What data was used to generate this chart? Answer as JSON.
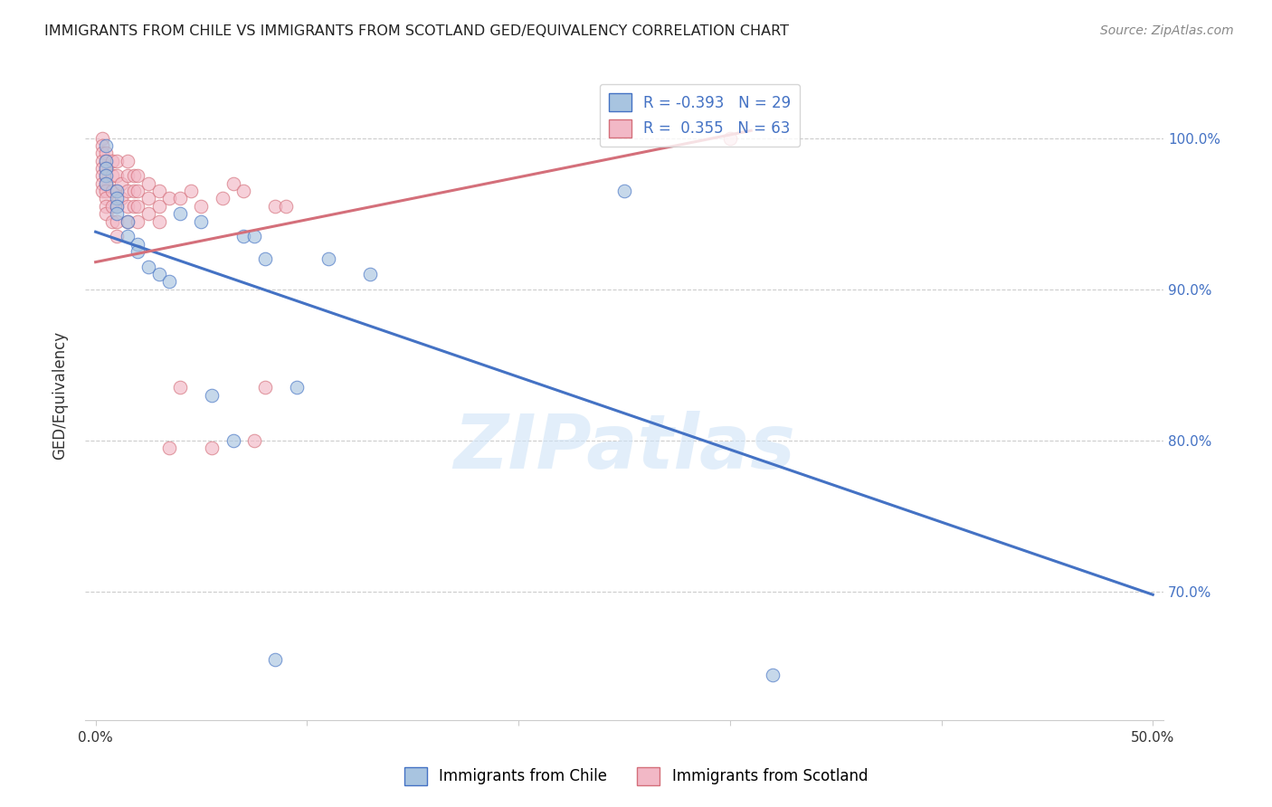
{
  "title": "IMMIGRANTS FROM CHILE VS IMMIGRANTS FROM SCOTLAND GED/EQUIVALENCY CORRELATION CHART",
  "source": "Source: ZipAtlas.com",
  "ylabel_label": "GED/Equivalency",
  "xmin": -0.005,
  "xmax": 0.505,
  "ymin": 0.615,
  "ymax": 1.045,
  "x_ticks": [
    0.0,
    0.1,
    0.2,
    0.3,
    0.4,
    0.5
  ],
  "x_tick_labels": [
    "0.0%",
    "",
    "",
    "",
    "",
    "50.0%"
  ],
  "y_ticks": [
    0.7,
    0.8,
    0.9,
    1.0
  ],
  "y_tick_labels": [
    "70.0%",
    "80.0%",
    "90.0%",
    "100.0%"
  ],
  "chile_color": "#a8c4e0",
  "scotland_color": "#f2b8c6",
  "chile_line_color": "#4472c4",
  "scotland_line_color": "#d46f7a",
  "legend_r_chile": "R = -0.393",
  "legend_n_chile": "N = 29",
  "legend_r_scotland": "R =  0.355",
  "legend_n_scotland": "N = 63",
  "watermark": "ZIPatlas",
  "chile_scatter_x": [
    0.005,
    0.005,
    0.005,
    0.005,
    0.005,
    0.01,
    0.01,
    0.01,
    0.01,
    0.015,
    0.015,
    0.02,
    0.02,
    0.025,
    0.03,
    0.035,
    0.04,
    0.05,
    0.055,
    0.065,
    0.07,
    0.08,
    0.085,
    0.095,
    0.11,
    0.13,
    0.25,
    0.075,
    0.32
  ],
  "chile_scatter_y": [
    0.995,
    0.985,
    0.98,
    0.975,
    0.97,
    0.965,
    0.96,
    0.955,
    0.95,
    0.945,
    0.935,
    0.93,
    0.925,
    0.915,
    0.91,
    0.905,
    0.95,
    0.945,
    0.83,
    0.8,
    0.935,
    0.92,
    0.655,
    0.835,
    0.92,
    0.91,
    0.965,
    0.935,
    0.645
  ],
  "scotland_scatter_x": [
    0.003,
    0.003,
    0.003,
    0.003,
    0.003,
    0.003,
    0.003,
    0.003,
    0.005,
    0.005,
    0.005,
    0.005,
    0.005,
    0.005,
    0.005,
    0.005,
    0.005,
    0.008,
    0.008,
    0.008,
    0.008,
    0.008,
    0.01,
    0.01,
    0.01,
    0.01,
    0.01,
    0.01,
    0.012,
    0.012,
    0.015,
    0.015,
    0.015,
    0.015,
    0.015,
    0.018,
    0.018,
    0.018,
    0.02,
    0.02,
    0.02,
    0.02,
    0.025,
    0.025,
    0.025,
    0.03,
    0.03,
    0.03,
    0.035,
    0.035,
    0.04,
    0.04,
    0.045,
    0.05,
    0.055,
    0.06,
    0.065,
    0.07,
    0.075,
    0.08,
    0.085,
    0.09,
    0.3
  ],
  "scotland_scatter_y": [
    1.0,
    0.995,
    0.99,
    0.985,
    0.98,
    0.975,
    0.97,
    0.965,
    0.99,
    0.985,
    0.98,
    0.975,
    0.97,
    0.965,
    0.96,
    0.955,
    0.95,
    0.985,
    0.975,
    0.965,
    0.955,
    0.945,
    0.985,
    0.975,
    0.965,
    0.955,
    0.945,
    0.935,
    0.97,
    0.96,
    0.985,
    0.975,
    0.965,
    0.955,
    0.945,
    0.975,
    0.965,
    0.955,
    0.975,
    0.965,
    0.955,
    0.945,
    0.97,
    0.96,
    0.95,
    0.965,
    0.955,
    0.945,
    0.96,
    0.795,
    0.96,
    0.835,
    0.965,
    0.955,
    0.795,
    0.96,
    0.97,
    0.965,
    0.8,
    0.835,
    0.955,
    0.955,
    1.0
  ],
  "chile_line_x0": 0.0,
  "chile_line_y0": 0.938,
  "chile_line_x1": 0.5,
  "chile_line_y1": 0.698,
  "scotland_line_x0": 0.0,
  "scotland_line_y0": 0.918,
  "scotland_line_x1": 0.31,
  "scotland_line_y1": 1.005
}
